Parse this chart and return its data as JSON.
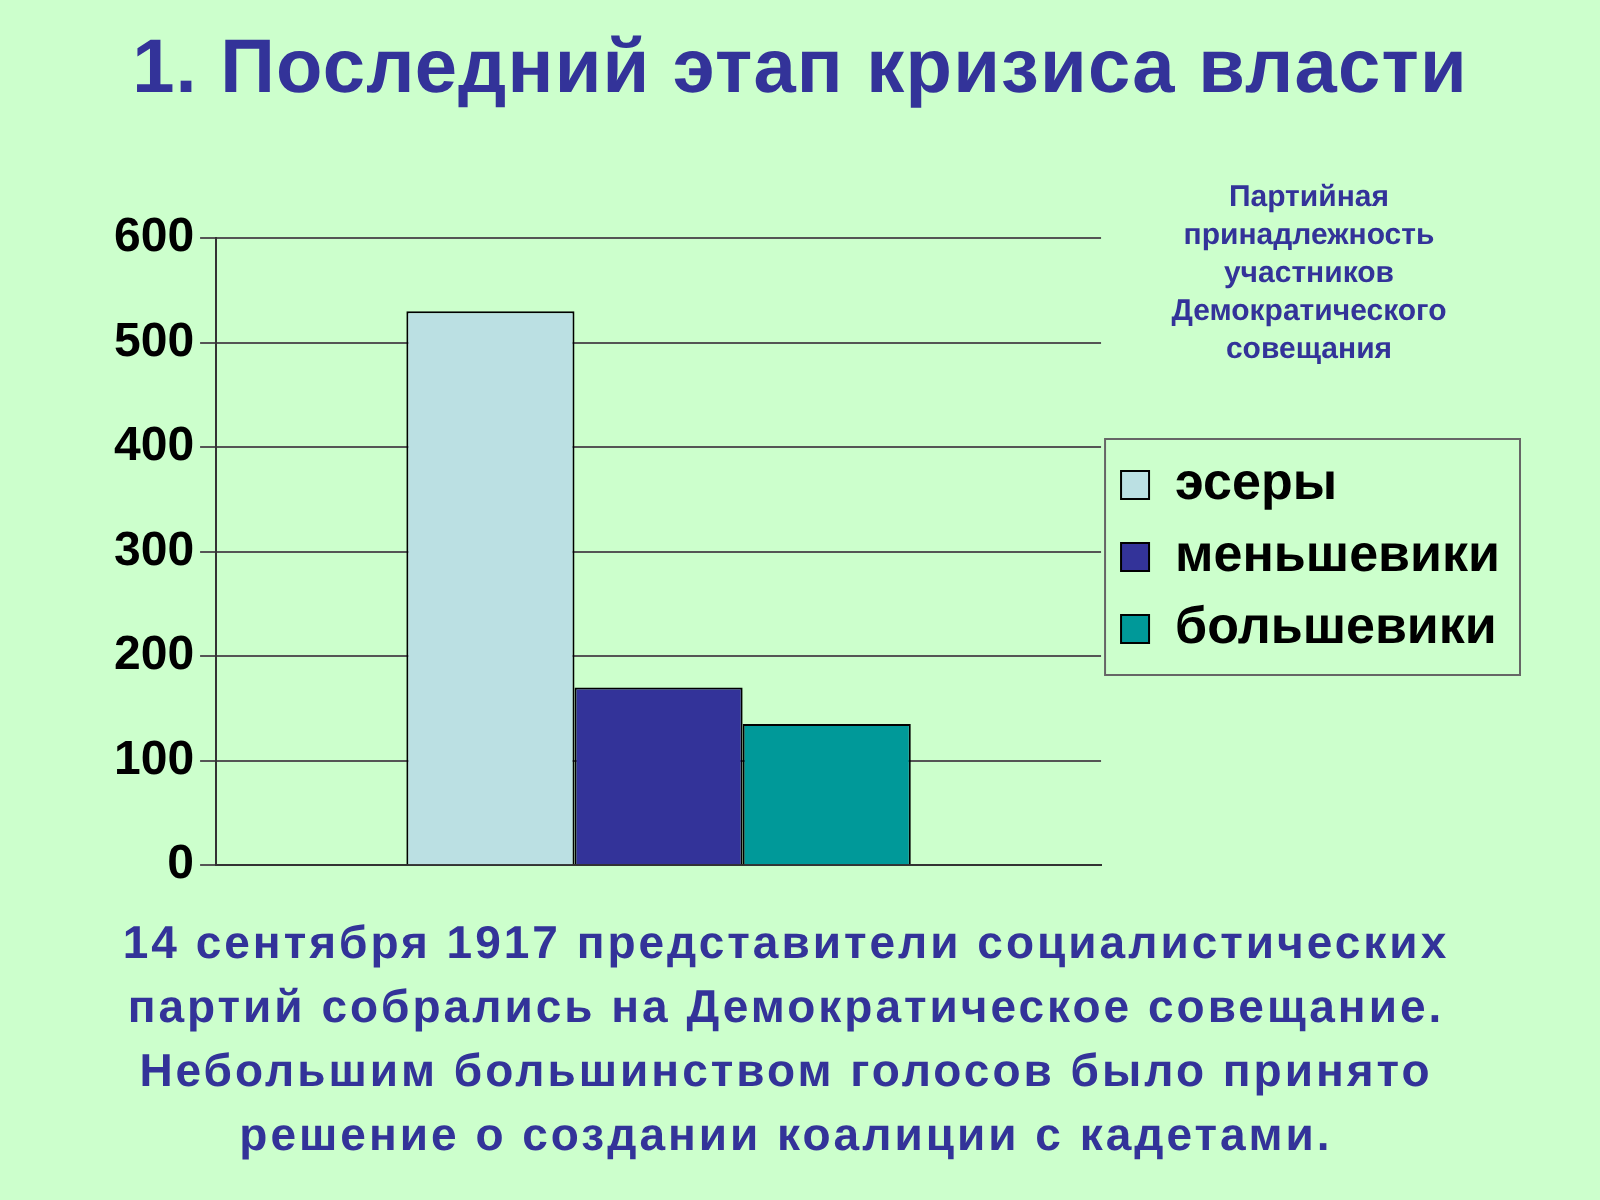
{
  "chart_data": {
    "type": "bar",
    "title": "1. Последний этап кризиса власти",
    "subtitle": "Партийная принадлежность участников Демократического совещания",
    "annotations": [
      "14 сентября 1917 представители социалистических партий собрались на Демократическое совещание. Небольшим большинством голосов было принято решение о создании коалиции с кадетами."
    ],
    "categories": [
      null
    ],
    "series": [
      {
        "name": "эсеры",
        "color": "#bbe0e3",
        "values": [
          530
        ]
      },
      {
        "name": "меньшевики",
        "color": "#333399",
        "values": [
          170
        ]
      },
      {
        "name": "большевики",
        "color": "#009999",
        "values": [
          135
        ]
      }
    ],
    "ylim": [
      0,
      600
    ],
    "yticks": [
      0,
      100,
      200,
      300,
      400,
      500,
      600
    ],
    "grid": "y",
    "legend": "right",
    "tick_labels": "y"
  }
}
